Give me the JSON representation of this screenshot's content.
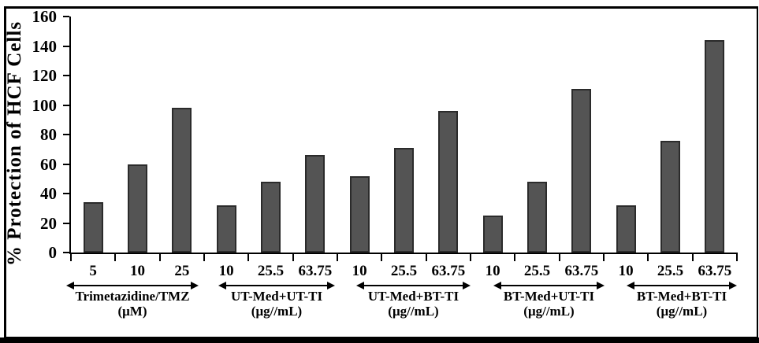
{
  "figure": {
    "background": "#ffffff",
    "frame_color": "#000000"
  },
  "chart_data": {
    "type": "bar",
    "title": "",
    "ylabel": "% Protection of HCF Cells",
    "xlabel": "",
    "ylim": [
      0,
      160
    ],
    "ytick_step": 20,
    "yticks": [
      "0",
      "20",
      "40",
      "60",
      "80",
      "100",
      "120",
      "140",
      "160"
    ],
    "grid": false,
    "legend": false,
    "bar_color": "#545454",
    "bar_border_color": "#2b2b2b",
    "groups": [
      {
        "label": "Trimetazidine/TMZ",
        "unit": "(μM)",
        "categories": [
          "5",
          "10",
          "25"
        ],
        "values": [
          34,
          60,
          98
        ]
      },
      {
        "label": "UT-Med+UT-TI",
        "unit": "(μg//mL)",
        "categories": [
          "10",
          "25.5",
          "63.75"
        ],
        "values": [
          32,
          48,
          66
        ]
      },
      {
        "label": "UT-Med+BT-TI",
        "unit": "(μg//mL)",
        "categories": [
          "10",
          "25.5",
          "63.75"
        ],
        "values": [
          52,
          71,
          96
        ]
      },
      {
        "label": "BT-Med+UT-TI",
        "unit": "(μg//mL)",
        "categories": [
          "10",
          "25.5",
          "63.75"
        ],
        "values": [
          25,
          48,
          111
        ]
      },
      {
        "label": "BT-Med+BT-TI",
        "unit": "(μg//mL)",
        "categories": [
          "10",
          "25.5",
          "63.75"
        ],
        "values": [
          32,
          76,
          144
        ]
      }
    ]
  }
}
